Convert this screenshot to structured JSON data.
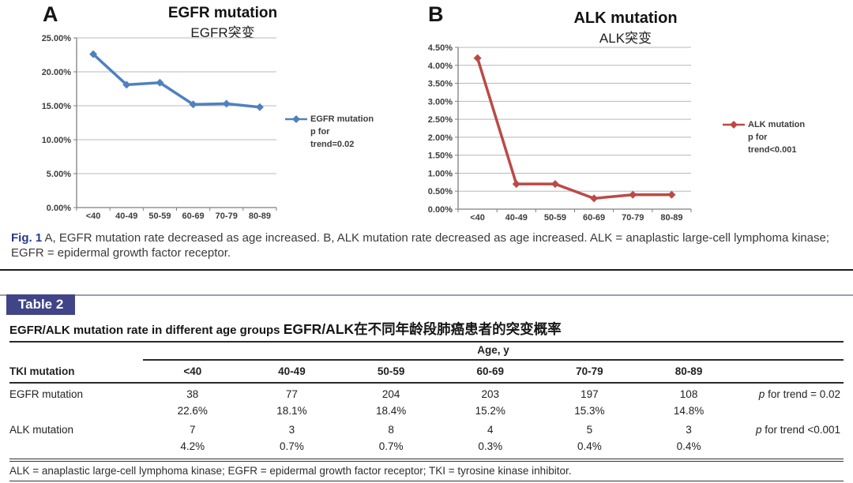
{
  "figure": {
    "caption_label": "Fig. 1",
    "caption_label_color": "#29398c",
    "caption_text": "A, EGFR mutation rate decreased as age increased. B, ALK mutation rate decreased as age increased. ALK = anaplastic large-cell lymphoma kinase; EGFR = epidermal growth factor receptor."
  },
  "chart_data": [
    {
      "type": "line",
      "panel_label": "A",
      "title": "EGFR mutation",
      "subtitle": "EGFR突变",
      "categories": [
        "<40",
        "40-49",
        "50-59",
        "60-69",
        "70-79",
        "80-89"
      ],
      "values": [
        22.6,
        18.1,
        18.4,
        15.2,
        15.3,
        14.8
      ],
      "ylim": [
        0,
        25
      ],
      "ytick_step": 5,
      "ytick_labels": [
        "0.00%",
        "5.00%",
        "10.00%",
        "15.00%",
        "20.00%",
        "25.00%"
      ],
      "line_color": "#4f81bd",
      "grid": true,
      "legend_position": "right",
      "legend_lines": [
        "EGFR mutation",
        "p for",
        "trend=0.02"
      ]
    },
    {
      "type": "line",
      "panel_label": "B",
      "title": "ALK mutation",
      "subtitle": "ALK突变",
      "categories": [
        "<40",
        "40-49",
        "50-59",
        "60-69",
        "70-79",
        "80-89"
      ],
      "values": [
        4.2,
        0.7,
        0.7,
        0.3,
        0.4,
        0.4
      ],
      "ylim": [
        0,
        4.5
      ],
      "ytick_step": 0.5,
      "ytick_labels": [
        "0.00%",
        "0.50%",
        "1.00%",
        "1.50%",
        "2.00%",
        "2.50%",
        "3.00%",
        "3.50%",
        "4.00%",
        "4.50%"
      ],
      "line_color": "#bb4a47",
      "grid": true,
      "legend_position": "right",
      "legend_lines": [
        "ALK mutation",
        "p for",
        "trend<0.001"
      ]
    }
  ],
  "table": {
    "badge": "Table 2",
    "badge_color": "#414487",
    "title_en": "EGFR/ALK mutation rate in different age groups",
    "title_zh": "EGFR/ALK在不同年龄段肺癌患者的突变概率",
    "age_header": "Age, y",
    "row_header": "TKI mutation",
    "age_columns": [
      "<40",
      "40-49",
      "50-59",
      "60-69",
      "70-79",
      "80-89"
    ],
    "rows": [
      {
        "label": "EGFR mutation",
        "counts": [
          "38",
          "77",
          "204",
          "203",
          "197",
          "108"
        ],
        "percents": [
          "22.6%",
          "18.1%",
          "18.4%",
          "15.2%",
          "15.3%",
          "14.8%"
        ],
        "p_italic": "p",
        "p_text": " for trend = 0.02"
      },
      {
        "label": "ALK mutation",
        "counts": [
          "7",
          "3",
          "8",
          "4",
          "5",
          "3"
        ],
        "percents": [
          "4.2%",
          "0.7%",
          "0.7%",
          "0.3%",
          "0.4%",
          "0.4%"
        ],
        "p_italic": "p",
        "p_text": " for trend <0.001"
      }
    ],
    "footnote": "ALK = anaplastic large-cell lymphoma kinase; EGFR = epidermal growth factor receptor; TKI = tyrosine kinase inhibitor."
  }
}
